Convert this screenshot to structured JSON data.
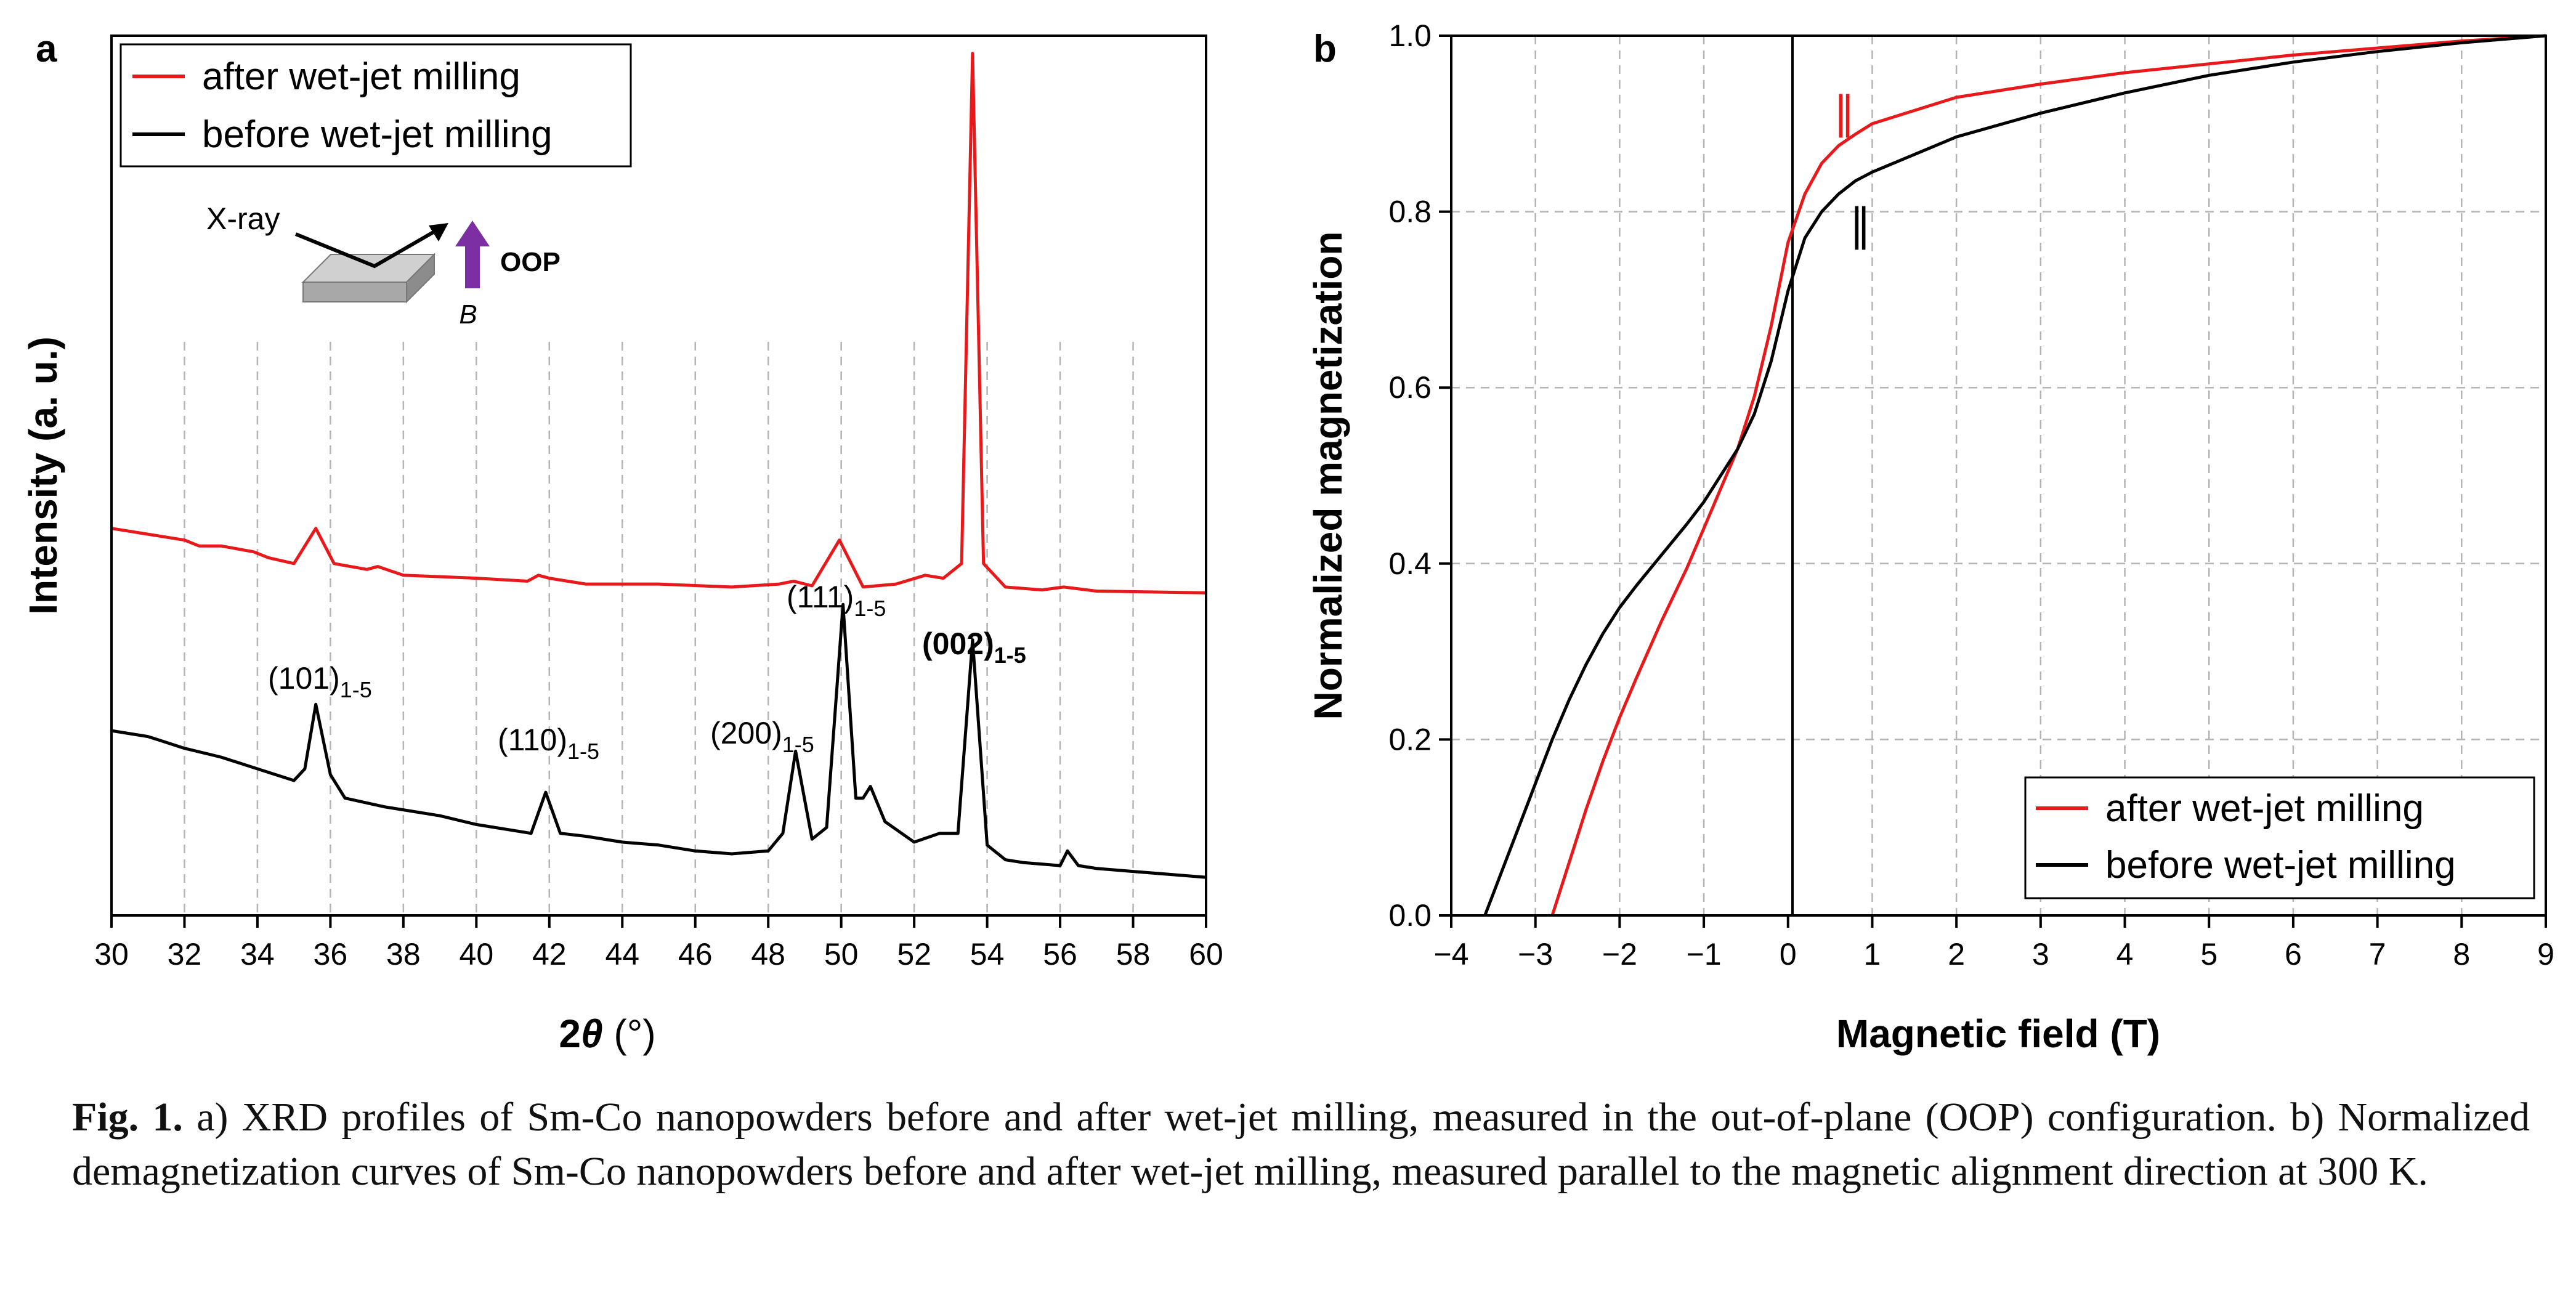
{
  "panel_a": {
    "label": "a",
    "xlabel_main": "2",
    "xlabel_theta": "θ",
    "xlabel_unit": " (°)",
    "ylabel": "Intensity (a. u.)",
    "legend": [
      "after wet-jet milling",
      "before wet-jet milling"
    ],
    "inset": {
      "xray": "X-ray",
      "oop": "OOP",
      "b": "B"
    },
    "peaks": [
      {
        "main": "(101)",
        "sub": "1-5",
        "bold": false
      },
      {
        "main": "(110)",
        "sub": "1-5",
        "bold": false
      },
      {
        "main": "(200)",
        "sub": "1-5",
        "bold": false
      },
      {
        "main": "(111)",
        "sub": "1-5",
        "bold": false
      },
      {
        "main": "(002)",
        "sub": "1-5",
        "bold": true
      }
    ]
  },
  "panel_b": {
    "label": "b",
    "xlabel": "Magnetic field (T)",
    "ylabel": "Normalized magnetization",
    "legend": [
      "after wet-jet milling",
      "before wet-jet milling"
    ],
    "parallel_mark": "∥"
  },
  "caption": {
    "fig_label": "Fig. 1.",
    "text": " a) XRD profiles of Sm-Co nanopowders before and after wet-jet milling, measured in the out-of-plane (OOP) configuration. b) Normalized demagnetization curves of Sm-Co nanopowders before and after wet-jet milling, measured parallel to the magnetic alignment direction at 300 K."
  },
  "colors": {
    "after": "#e8191b",
    "before": "#000000",
    "arrow": "#7b2fa3",
    "grid": "#b4b4b4"
  },
  "chart_data": [
    {
      "type": "line",
      "xlabel": "2θ (°)",
      "ylabel": "Intensity (a. u.)",
      "xlim": [
        30,
        60
      ],
      "xticks": [
        30,
        32,
        34,
        36,
        38,
        40,
        42,
        44,
        46,
        48,
        50,
        52,
        54,
        56,
        58,
        60
      ],
      "grid": "vertical dashed",
      "legend_position": "top-left",
      "series": [
        {
          "name": "after wet-jet milling",
          "x": [
            30,
            32,
            32.4,
            33,
            33.9,
            34.3,
            35,
            35.6,
            36.1,
            37,
            37.3,
            38,
            40,
            41.4,
            41.7,
            42,
            43,
            45,
            47,
            48.3,
            48.7,
            49.2,
            49.95,
            50.6,
            51.5,
            52.3,
            52.8,
            53.3,
            53.6,
            53.9,
            54.5,
            55.5,
            56.1,
            57,
            60
          ],
          "y": [
            0.66,
            0.64,
            0.63,
            0.63,
            0.62,
            0.61,
            0.6,
            0.66,
            0.6,
            0.59,
            0.595,
            0.58,
            0.575,
            0.57,
            0.58,
            0.575,
            0.565,
            0.565,
            0.56,
            0.565,
            0.57,
            0.562,
            0.64,
            0.56,
            0.565,
            0.58,
            0.575,
            0.6,
            1.47,
            0.6,
            0.56,
            0.555,
            0.56,
            0.553,
            0.55
          ]
        },
        {
          "name": "before wet-jet milling",
          "x": [
            30,
            31,
            32,
            33,
            34,
            35,
            35.3,
            35.6,
            36,
            36.4,
            37.5,
            39,
            40,
            41.5,
            41.9,
            42.3,
            43,
            44,
            45,
            46,
            47,
            48,
            48.4,
            48.75,
            49.2,
            49.6,
            50.05,
            50.4,
            50.6,
            50.8,
            51.2,
            52,
            52.7,
            53.2,
            53.6,
            54,
            54.5,
            55,
            56,
            56.2,
            56.5,
            57,
            58,
            60
          ],
          "y": [
            0.315,
            0.305,
            0.285,
            0.27,
            0.25,
            0.23,
            0.25,
            0.36,
            0.24,
            0.2,
            0.185,
            0.17,
            0.155,
            0.14,
            0.21,
            0.14,
            0.135,
            0.125,
            0.12,
            0.11,
            0.105,
            0.11,
            0.14,
            0.28,
            0.13,
            0.15,
            0.53,
            0.2,
            0.2,
            0.22,
            0.16,
            0.125,
            0.14,
            0.14,
            0.47,
            0.12,
            0.095,
            0.09,
            0.085,
            0.11,
            0.085,
            0.08,
            0.075,
            0.065
          ]
        }
      ]
    },
    {
      "type": "line",
      "xlabel": "Magnetic field (T)",
      "ylabel": "Normalized magnetization",
      "xlim": [
        -4,
        9
      ],
      "ylim": [
        0,
        1
      ],
      "xticks": [
        -4,
        -3,
        -2,
        -1,
        0,
        1,
        2,
        3,
        4,
        5,
        6,
        7,
        8,
        9
      ],
      "yticks": [
        0.0,
        0.2,
        0.4,
        0.6,
        0.8,
        1.0
      ],
      "grid": "dashed",
      "legend_position": "bottom-right",
      "series": [
        {
          "name": "after wet-jet milling",
          "x": [
            -2.8,
            -2.6,
            -2.4,
            -2.2,
            -2.0,
            -1.8,
            -1.5,
            -1.2,
            -1.0,
            -0.8,
            -0.6,
            -0.4,
            -0.2,
            0.0,
            0.2,
            0.4,
            0.6,
            0.8,
            1.0,
            1.5,
            2.0,
            3.0,
            4.0,
            5.0,
            6.0,
            7.0,
            8.0,
            9.0
          ],
          "y": [
            0.0,
            0.06,
            0.12,
            0.175,
            0.225,
            0.27,
            0.335,
            0.395,
            0.44,
            0.485,
            0.53,
            0.59,
            0.67,
            0.765,
            0.82,
            0.855,
            0.875,
            0.888,
            0.9,
            0.915,
            0.93,
            0.945,
            0.958,
            0.968,
            0.978,
            0.986,
            0.994,
            1.0
          ]
        },
        {
          "name": "before wet-jet milling",
          "x": [
            -3.6,
            -3.4,
            -3.2,
            -3.0,
            -2.8,
            -2.6,
            -2.4,
            -2.2,
            -2.0,
            -1.8,
            -1.5,
            -1.2,
            -1.0,
            -0.8,
            -0.6,
            -0.4,
            -0.2,
            0.0,
            0.2,
            0.4,
            0.6,
            0.8,
            1.0,
            1.5,
            2.0,
            3.0,
            4.0,
            5.0,
            6.0,
            7.0,
            8.0,
            9.0
          ],
          "y": [
            0.0,
            0.05,
            0.1,
            0.15,
            0.2,
            0.245,
            0.285,
            0.32,
            0.35,
            0.375,
            0.41,
            0.445,
            0.47,
            0.5,
            0.53,
            0.57,
            0.63,
            0.71,
            0.77,
            0.8,
            0.82,
            0.835,
            0.845,
            0.865,
            0.885,
            0.912,
            0.935,
            0.955,
            0.97,
            0.982,
            0.992,
            1.0
          ]
        }
      ]
    }
  ]
}
